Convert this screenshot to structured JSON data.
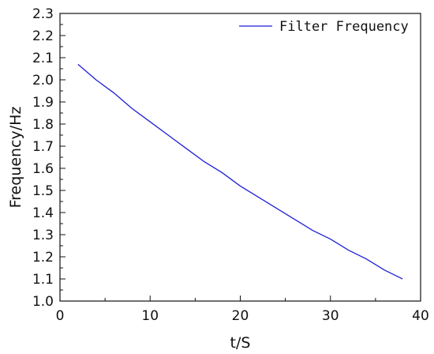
{
  "chart_data": {
    "type": "line",
    "title": "",
    "xlabel": "t/S",
    "ylabel": "Frequency/Hz",
    "xlim": [
      0,
      40
    ],
    "ylim": [
      1.0,
      2.3
    ],
    "xticks": [
      0,
      10,
      20,
      30,
      40
    ],
    "yticks": [
      1.0,
      1.1,
      1.2,
      1.3,
      1.4,
      1.5,
      1.6,
      1.7,
      1.8,
      1.9,
      2.0,
      2.1,
      2.2,
      2.3
    ],
    "grid": false,
    "legend_position": "top-right",
    "series": [
      {
        "name": "Filter Frequency",
        "color": "#1f1fd6",
        "x": [
          2,
          4,
          6,
          8,
          10,
          12,
          14,
          16,
          18,
          20,
          22,
          24,
          26,
          28,
          30,
          32,
          34,
          36,
          38
        ],
        "y": [
          2.07,
          2.0,
          1.94,
          1.87,
          1.81,
          1.75,
          1.69,
          1.63,
          1.58,
          1.52,
          1.47,
          1.42,
          1.37,
          1.32,
          1.28,
          1.23,
          1.19,
          1.14,
          1.1
        ]
      }
    ]
  }
}
